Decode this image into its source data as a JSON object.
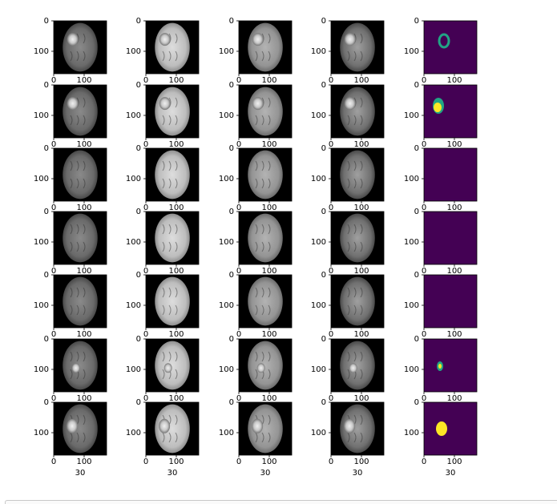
{
  "chart_data": {
    "type": "image-grid",
    "rows": 7,
    "cols": 5,
    "x_ticks": [
      "0",
      "100"
    ],
    "y_ticks": [
      "0",
      "100"
    ],
    "bottom_label": "30",
    "colors": {
      "mask_background": "#440154",
      "mask_class_a": "#21a585",
      "mask_class_b": "#fde725",
      "mri_background": "#000000"
    },
    "mask_contents": [
      [
        "green-ring"
      ],
      [
        "green-yellow-blob"
      ],
      [],
      [],
      [],
      [
        "small-green-yellow-blob"
      ],
      [
        "yellow-blob"
      ]
    ]
  }
}
